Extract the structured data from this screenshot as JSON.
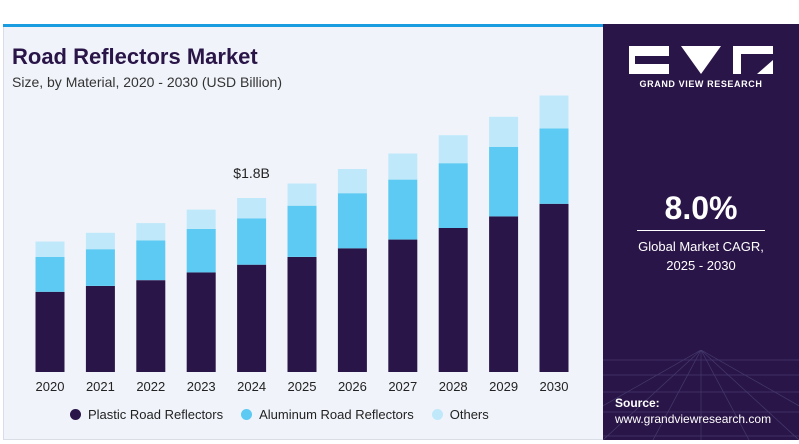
{
  "title": "Road Reflectors Market",
  "subtitle": "Size, by Material, 2020 - 2030 (USD Billion)",
  "annotation": "$1.8B",
  "side_panel": {
    "brand": "GRAND VIEW RESEARCH",
    "cagr_value": "8.0%",
    "cagr_label_line1": "Global Market CAGR,",
    "cagr_label_line2": "2025 - 2030",
    "source_label": "Source:",
    "source_url": "www.grandviewresearch.com",
    "background_color": "#2a1548"
  },
  "legend": [
    {
      "label": "Plastic Road Reflectors",
      "color": "#2a1548"
    },
    {
      "label": "Aluminum Road Reflectors",
      "color": "#5ccaf2"
    },
    {
      "label": "Others",
      "color": "#bfe9fa"
    }
  ],
  "chart_data": {
    "type": "bar",
    "stacked": true,
    "categories": [
      "2020",
      "2021",
      "2022",
      "2023",
      "2024",
      "2025",
      "2026",
      "2027",
      "2028",
      "2029",
      "2030"
    ],
    "series": [
      {
        "name": "Plastic Road Reflectors",
        "color": "#2a1548",
        "values": [
          0.83,
          0.89,
          0.95,
          1.03,
          1.11,
          1.19,
          1.28,
          1.37,
          1.49,
          1.61,
          1.74
        ]
      },
      {
        "name": "Aluminum Road Reflectors",
        "color": "#5ccaf2",
        "values": [
          0.36,
          0.38,
          0.41,
          0.45,
          0.48,
          0.53,
          0.57,
          0.62,
          0.67,
          0.72,
          0.78
        ]
      },
      {
        "name": "Others",
        "color": "#bfe9fa",
        "values": [
          0.16,
          0.17,
          0.18,
          0.2,
          0.21,
          0.23,
          0.25,
          0.27,
          0.29,
          0.31,
          0.34
        ]
      }
    ],
    "annotations": [
      {
        "category": "2024",
        "text": "$1.8B"
      }
    ],
    "ylim": [
      0,
      3.0
    ],
    "grid": false,
    "legend_position": "bottom"
  }
}
